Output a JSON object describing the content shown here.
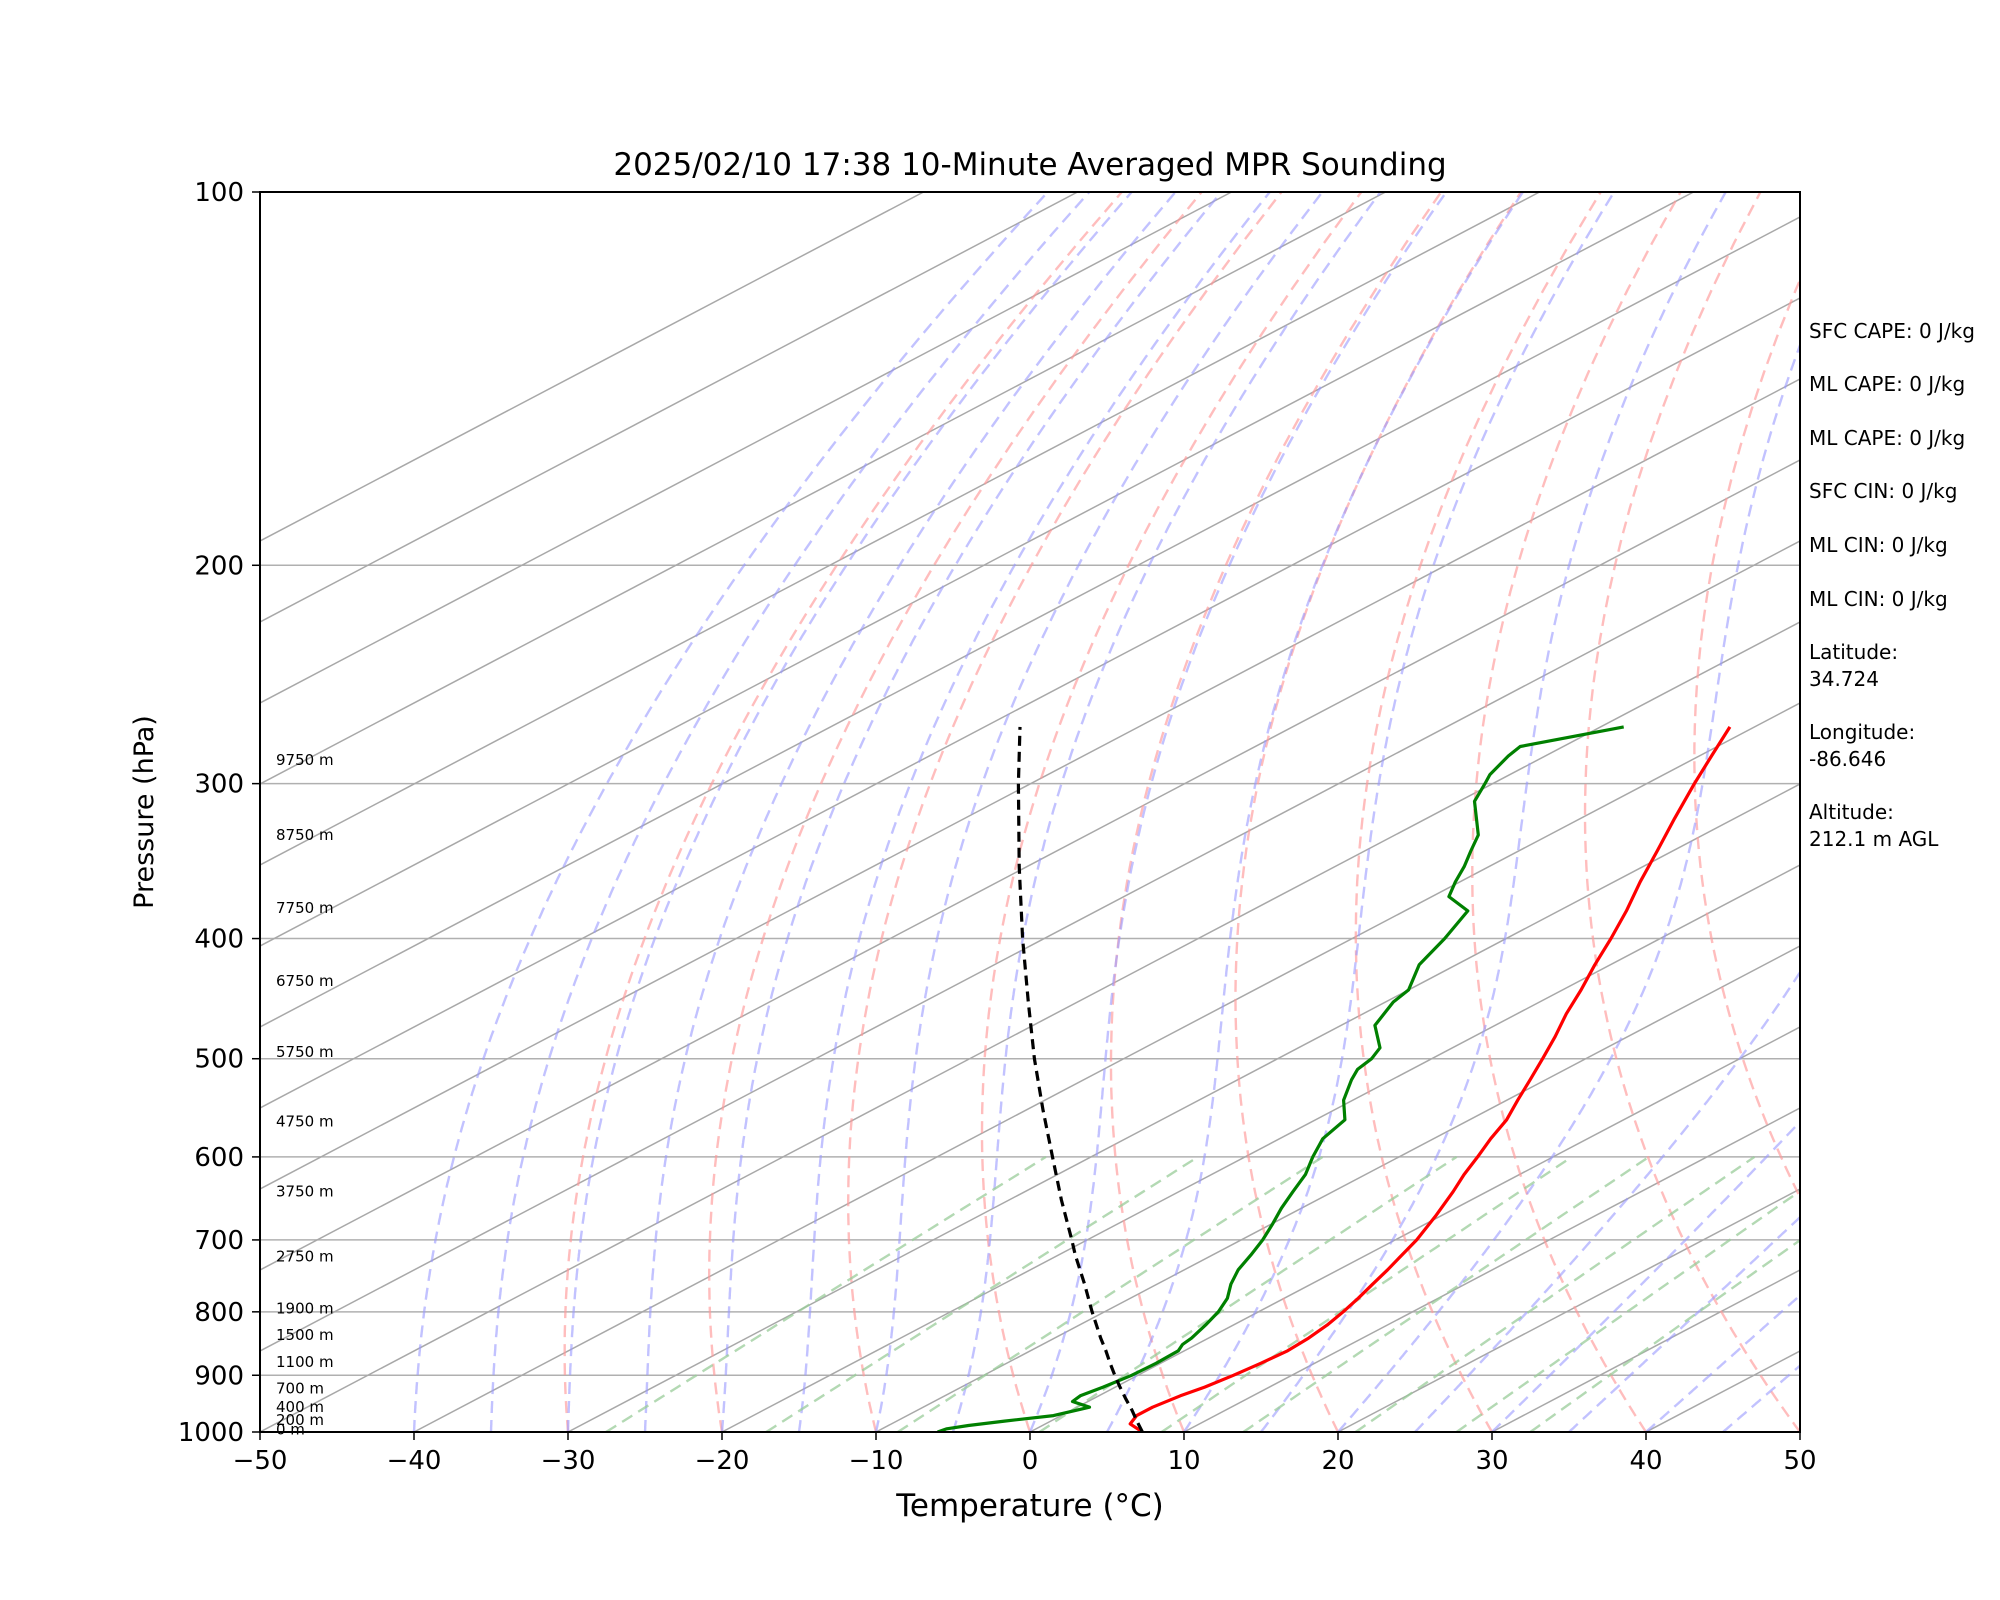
{
  "chart_data": {
    "type": "skew-t",
    "title": "2025/02/10 17:38 10-Minute Averaged MPR Sounding",
    "xlabel": "Temperature (°C)",
    "ylabel": "Pressure (hPa)",
    "xlim": [
      -50,
      50
    ],
    "ylim": [
      1000,
      100
    ],
    "y_scale": "log",
    "grid": true,
    "x_ticks": [
      "−50",
      "−40",
      "−30",
      "−20",
      "−10",
      "0",
      "10",
      "20",
      "30",
      "40",
      "50"
    ],
    "y_ticks": [
      "1000",
      "900",
      "800",
      "700",
      "600",
      "500",
      "400",
      "300",
      "200",
      "100"
    ],
    "height_labels": [
      {
        "label": "0 m",
        "pressure": 995
      },
      {
        "label": "200 m",
        "pressure": 978
      },
      {
        "label": "400 m",
        "pressure": 955
      },
      {
        "label": "700 m",
        "pressure": 922
      },
      {
        "label": "1100 m",
        "pressure": 878
      },
      {
        "label": "1500 m",
        "pressure": 835
      },
      {
        "label": "1900 m",
        "pressure": 795
      },
      {
        "label": "2750 m",
        "pressure": 722
      },
      {
        "label": "3750 m",
        "pressure": 640
      },
      {
        "label": "4750 m",
        "pressure": 562
      },
      {
        "label": "5750 m",
        "pressure": 494
      },
      {
        "label": "6750 m",
        "pressure": 433
      },
      {
        "label": "7750 m",
        "pressure": 378
      },
      {
        "label": "8750 m",
        "pressure": 330
      },
      {
        "label": "9750 m",
        "pressure": 287
      }
    ],
    "series": [
      {
        "name": "",
        "role": "temperature",
        "color": "#ff0000",
        "points": [
          [
            1000,
            7.3
          ],
          [
            985,
            5.5
          ],
          [
            970,
            4.9
          ],
          [
            955,
            4.9
          ],
          [
            935,
            5.3
          ],
          [
            920,
            5.8
          ],
          [
            900,
            6.2
          ],
          [
            880,
            6.5
          ],
          [
            860,
            6.7
          ],
          [
            840,
            6.5
          ],
          [
            820,
            6.1
          ],
          [
            800,
            5.5
          ],
          [
            780,
            4.8
          ],
          [
            760,
            4.0
          ],
          [
            740,
            3.2
          ],
          [
            720,
            2.3
          ],
          [
            700,
            1.4
          ],
          [
            670,
            -0.3
          ],
          [
            640,
            -2.2
          ],
          [
            620,
            -3.6
          ],
          [
            600,
            -4.9
          ],
          [
            580,
            -6.3
          ],
          [
            560,
            -7.6
          ],
          [
            540,
            -9.3
          ],
          [
            520,
            -11.0
          ],
          [
            500,
            -12.8
          ],
          [
            480,
            -14.7
          ],
          [
            460,
            -16.8
          ],
          [
            440,
            -18.8
          ],
          [
            420,
            -21.0
          ],
          [
            400,
            -23.2
          ],
          [
            380,
            -25.6
          ],
          [
            360,
            -28.3
          ],
          [
            340,
            -31.0
          ],
          [
            320,
            -33.9
          ],
          [
            300,
            -36.9
          ],
          [
            285,
            -39.2
          ],
          [
            270,
            -41.6
          ]
        ]
      },
      {
        "name": "",
        "role": "dewpoint",
        "color": "#008000",
        "points": [
          [
            1000,
            -6.0
          ],
          [
            994,
            -5.8
          ],
          [
            988,
            -4.8
          ],
          [
            980,
            -3.0
          ],
          [
            970,
            -0.5
          ],
          [
            955,
            0.8
          ],
          [
            945,
            -1.0
          ],
          [
            935,
            -1.2
          ],
          [
            920,
            -0.8
          ],
          [
            900,
            -0.4
          ],
          [
            880,
            -0.3
          ],
          [
            860,
            -0.4
          ],
          [
            850,
            -0.9
          ],
          [
            840,
            -1.1
          ],
          [
            820,
            -1.8
          ],
          [
            800,
            -2.6
          ],
          [
            780,
            -3.7
          ],
          [
            760,
            -5.2
          ],
          [
            740,
            -6.5
          ],
          [
            720,
            -7.5
          ],
          [
            700,
            -8.6
          ],
          [
            680,
            -9.9
          ],
          [
            660,
            -11.3
          ],
          [
            640,
            -12.6
          ],
          [
            620,
            -13.9
          ],
          [
            600,
            -15.6
          ],
          [
            580,
            -17.2
          ],
          [
            560,
            -18.1
          ],
          [
            540,
            -20.6
          ],
          [
            520,
            -22.6
          ],
          [
            510,
            -23.5
          ],
          [
            500,
            -23.9
          ],
          [
            490,
            -24.7
          ],
          [
            470,
            -27.8
          ],
          [
            450,
            -29.5
          ],
          [
            440,
            -30.0
          ],
          [
            420,
            -32.4
          ],
          [
            400,
            -34.0
          ],
          [
            380,
            -35.9
          ],
          [
            370,
            -38.9
          ],
          [
            360,
            -40.3
          ],
          [
            350,
            -41.6
          ],
          [
            340,
            -43.1
          ],
          [
            330,
            -44.6
          ],
          [
            310,
            -49.0
          ],
          [
            300,
            -50.5
          ],
          [
            295,
            -51.3
          ],
          [
            285,
            -52.4
          ],
          [
            280,
            -52.8
          ],
          [
            270,
            -48.5
          ]
        ]
      },
      {
        "name": "",
        "role": "parcel",
        "color": "#000000",
        "points": [
          [
            1000,
            7.3
          ],
          [
            980,
            5.6
          ],
          [
            960,
            3.9
          ],
          [
            940,
            2.1
          ],
          [
            920,
            0.3
          ],
          [
            900,
            -1.5
          ],
          [
            880,
            -3.3
          ],
          [
            860,
            -5.1
          ],
          [
            840,
            -7.0
          ],
          [
            800,
            -10.8
          ],
          [
            760,
            -14.7
          ],
          [
            720,
            -18.9
          ],
          [
            700,
            -21.0
          ],
          [
            650,
            -26.6
          ],
          [
            600,
            -32.5
          ],
          [
            550,
            -38.9
          ],
          [
            500,
            -45.8
          ],
          [
            450,
            -53.2
          ],
          [
            400,
            -61.4
          ],
          [
            350,
            -70.5
          ],
          [
            300,
            -80.8
          ],
          [
            270,
            -87.7
          ]
        ]
      }
    ],
    "reference_lines": {
      "isotherms": "gray",
      "dry_adiabats": "#ff9999",
      "moist_adiabats": "#9999ff",
      "mixing_ratio": "#99cc99"
    }
  },
  "annotations": [
    "SFC CAPE: 0 J/kg",
    "ML CAPE: 0 J/kg",
    "ML CAPE: 0 J/kg",
    "SFC CIN: 0 J/kg",
    "ML CIN: 0 J/kg",
    "ML CIN: 0 J/kg",
    "Latitude:\n34.724",
    "Longitude:\n-86.646",
    "Altitude:\n212.1 m AGL"
  ]
}
